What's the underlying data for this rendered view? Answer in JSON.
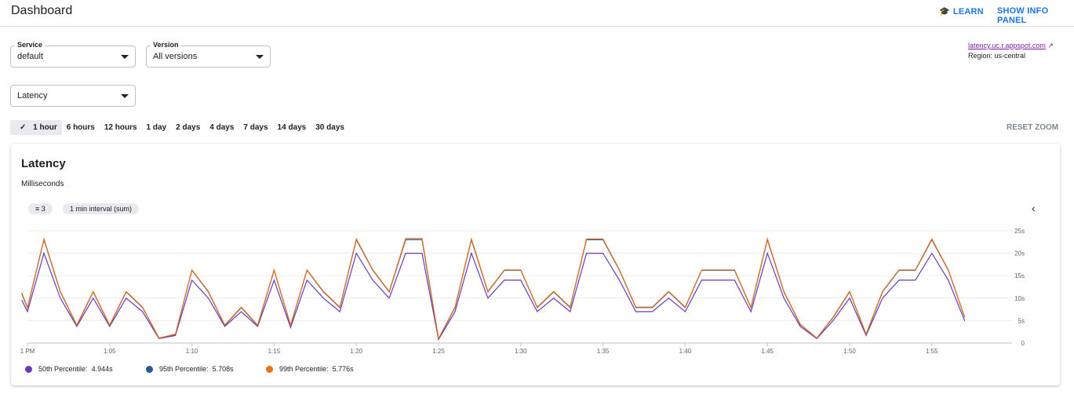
{
  "header": {
    "title": "Dashboard",
    "learn_label": "LEARN",
    "info_panel_label": "SHOW INFO PANEL"
  },
  "filters": {
    "service_label": "Service",
    "service_value": "default",
    "version_label": "Version",
    "version_value": "All versions",
    "metric_value": "Latency"
  },
  "app_link": {
    "url_text": "latency.uc.r.appspot.com",
    "region": "Region: us-central"
  },
  "time_ranges": [
    "1 hour",
    "6 hours",
    "12 hours",
    "1 day",
    "2 days",
    "4 days",
    "7 days",
    "14 days",
    "30 days"
  ],
  "selected_range": "1 hour",
  "reset_zoom": "RESET ZOOM",
  "card": {
    "title": "Latency",
    "subtitle": "Milliseconds",
    "filter_count": "3",
    "interval": "1 min interval (sum)"
  },
  "legend": [
    {
      "label": "50th Percentile:",
      "value": "4.944s",
      "color": "#673ab7"
    },
    {
      "label": "95th Percentile:",
      "value": "5.708s",
      "color": "#2b5797"
    },
    {
      "label": "99th Percentile:",
      "value": "5.776s",
      "color": "#e8711a"
    }
  ],
  "chart_data": {
    "type": "line",
    "xlabel": "",
    "ylabel": "",
    "x_unit": "minutes after 1 PM",
    "x_ticks": [
      {
        "v": 0,
        "label": "1 PM"
      },
      {
        "v": 5,
        "label": "1:05"
      },
      {
        "v": 10,
        "label": "1:10"
      },
      {
        "v": 15,
        "label": "1:15"
      },
      {
        "v": 20,
        "label": "1:20"
      },
      {
        "v": 25,
        "label": "1:25"
      },
      {
        "v": 30,
        "label": "1:30"
      },
      {
        "v": 35,
        "label": "1:35"
      },
      {
        "v": 40,
        "label": "1:40"
      },
      {
        "v": 45,
        "label": "1:45"
      },
      {
        "v": 50,
        "label": "1:50"
      },
      {
        "v": 55,
        "label": "1:55"
      }
    ],
    "y_ticks": [
      {
        "v": 0,
        "label": "0"
      },
      {
        "v": 5,
        "label": "5s"
      },
      {
        "v": 10,
        "label": "10s"
      },
      {
        "v": 15,
        "label": "15s"
      },
      {
        "v": 20,
        "label": "20s"
      },
      {
        "v": 25,
        "label": "25s"
      }
    ],
    "ylim": [
      0,
      25
    ],
    "xlim": [
      -0.35,
      60
    ],
    "grid": true,
    "x": [
      -0.35,
      0,
      1,
      2,
      3,
      4,
      5,
      6,
      7,
      8,
      9,
      10,
      11,
      12,
      13,
      14,
      15,
      16,
      17,
      18,
      19,
      20,
      21,
      22,
      23,
      24,
      25,
      26,
      27,
      28,
      29,
      30,
      31,
      32,
      33,
      34,
      35,
      36,
      37,
      38,
      39,
      40,
      41,
      42,
      43,
      44,
      45,
      46,
      47,
      48,
      49,
      50,
      51,
      52,
      53,
      54,
      55,
      56,
      57
    ],
    "series": [
      {
        "name": "50th Percentile",
        "color": "#673ab7",
        "values": [
          9.6,
          7,
          20,
          10,
          3.7,
          10,
          3.7,
          10,
          7,
          1,
          1.7,
          14,
          10,
          3.7,
          7,
          3.7,
          14,
          3.5,
          14,
          10,
          7,
          20,
          14,
          10,
          20,
          20,
          0.8,
          7,
          20,
          10,
          14,
          14,
          7,
          10,
          7,
          20,
          20,
          14,
          7,
          7,
          10,
          7,
          14,
          14,
          14,
          7,
          20,
          10,
          3.7,
          1,
          5,
          10,
          1.7,
          10,
          14,
          14,
          20,
          14,
          4.944
        ]
      },
      {
        "name": "95th Percentile",
        "color": "#2b5797",
        "values": [
          11,
          7.8,
          23,
          11.4,
          3.9,
          11.4,
          3.9,
          11.4,
          7.9,
          1.1,
          1.9,
          16.2,
          11.4,
          3.9,
          7.9,
          3.9,
          16.2,
          3.9,
          16.2,
          11.4,
          7.9,
          23,
          16.2,
          11.4,
          23,
          23,
          0.9,
          7.9,
          23,
          11.4,
          16.2,
          16.2,
          7.9,
          11.4,
          7.9,
          23,
          23,
          16.2,
          7.9,
          7.9,
          11.4,
          7.9,
          16.2,
          16.2,
          16.2,
          7.9,
          23,
          11.4,
          4.1,
          1.1,
          5.7,
          11.4,
          1.9,
          11.4,
          16.2,
          16.2,
          23,
          16.2,
          5.708
        ]
      },
      {
        "name": "99th Percentile",
        "color": "#e8711a",
        "values": [
          11.2,
          7.9,
          23.2,
          11.5,
          4,
          11.5,
          4,
          11.5,
          8,
          1.1,
          2,
          16.3,
          11.5,
          4,
          8,
          4,
          16.3,
          4,
          16.3,
          11.5,
          8,
          23.2,
          16.3,
          11.5,
          23.3,
          23.3,
          1,
          8,
          23.2,
          11.5,
          16.3,
          16.3,
          8,
          11.5,
          8,
          23.2,
          23.2,
          16.3,
          8,
          8,
          11.5,
          8,
          16.3,
          16.3,
          16.3,
          8,
          23.2,
          11.5,
          4.2,
          1.1,
          5.8,
          11.5,
          2,
          11.5,
          16.3,
          16.3,
          23.2,
          16.3,
          5.776
        ]
      }
    ]
  }
}
